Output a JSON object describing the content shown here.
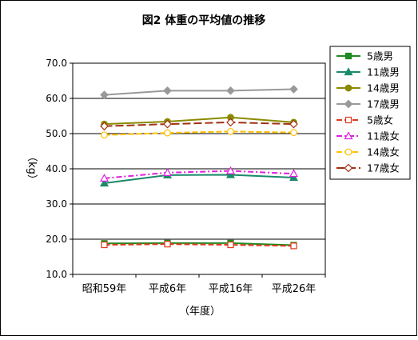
{
  "chart_data": {
    "type": "line",
    "title": "図2 体重の平均値の推移",
    "xlabel": "（年度）",
    "ylabel": "（kg）",
    "categories": [
      "昭和59年",
      "平成6年",
      "平成16年",
      "平成26年"
    ],
    "ylim": [
      10.0,
      70.0
    ],
    "yticks": [
      "10.0",
      "20.0",
      "30.0",
      "40.0",
      "50.0",
      "60.0",
      "70.0"
    ],
    "grid": "horizontal",
    "legend_position": "right",
    "series": [
      {
        "name": "5歳男",
        "values": [
          18.8,
          18.9,
          18.9,
          18.3
        ],
        "color": "#1f8a1f",
        "marker": "square",
        "dash": "solid"
      },
      {
        "name": "11歳男",
        "values": [
          35.9,
          38.2,
          38.3,
          37.5
        ],
        "color": "#1a8a6a",
        "marker": "triangle",
        "dash": "solid"
      },
      {
        "name": "14歳男",
        "values": [
          52.7,
          53.4,
          54.6,
          53.2
        ],
        "color": "#8a8a00",
        "marker": "circle",
        "dash": "solid"
      },
      {
        "name": "17歳男",
        "values": [
          61.0,
          62.2,
          62.2,
          62.6
        ],
        "color": "#999999",
        "marker": "diamond",
        "dash": "solid"
      },
      {
        "name": "5歳女",
        "values": [
          18.4,
          18.6,
          18.4,
          18.1
        ],
        "color": "#e03a1e",
        "marker": "square-open",
        "dash": "dash"
      },
      {
        "name": "11歳女",
        "values": [
          37.3,
          38.9,
          39.4,
          38.6
        ],
        "color": "#e020e0",
        "marker": "triangle-open",
        "dash": "dashdot"
      },
      {
        "name": "14歳女",
        "values": [
          49.6,
          50.2,
          50.6,
          50.3
        ],
        "color": "#ffc000",
        "marker": "circle-open",
        "dash": "dash"
      },
      {
        "name": "17歳女",
        "values": [
          52.1,
          52.7,
          53.2,
          52.7
        ],
        "color": "#a03010",
        "marker": "diamond-open",
        "dash": "longdash"
      }
    ]
  }
}
